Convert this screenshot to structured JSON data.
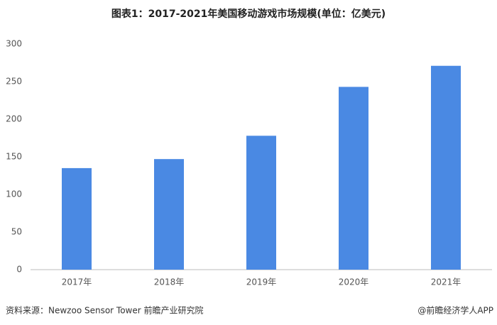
{
  "chart_data": {
    "type": "bar",
    "title": "图表1：2017-2021年美国移动游戏市场规模(单位：亿美元)",
    "categories": [
      "2017年",
      "2018年",
      "2019年",
      "2020年",
      "2021年"
    ],
    "values": [
      135,
      147,
      178,
      243,
      271
    ],
    "color": "#4a89e3",
    "ylim": [
      0,
      300
    ],
    "yticks": [
      0,
      50,
      100,
      150,
      200,
      250,
      300
    ],
    "grid": false,
    "source": "资料来源：Newzoo Sensor Tower 前瞻产业研究院",
    "credit": "@前瞻经济学人APP"
  }
}
